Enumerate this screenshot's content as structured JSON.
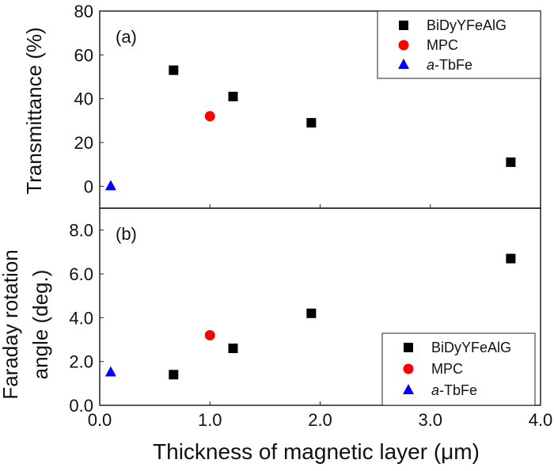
{
  "chart_data": [
    {
      "type": "scatter",
      "panel_label": "(a)",
      "ylabel": "Transmittance (%)",
      "ylim": [
        -10,
        80
      ],
      "yticks": [
        "80",
        "60",
        "40",
        "20",
        "0"
      ],
      "ytick_values": [
        80,
        60,
        40,
        20,
        0
      ],
      "xlim": [
        0,
        4
      ],
      "legend": "top-right",
      "series": [
        {
          "name": "BiDyYFeAlG",
          "marker": "square",
          "color": "#000000",
          "x": [
            0.67,
            1.21,
            1.92,
            3.73
          ],
          "y": [
            53,
            41,
            29,
            11
          ]
        },
        {
          "name": "MPC",
          "marker": "circle",
          "color": "#ff0000",
          "x": [
            1.0
          ],
          "y": [
            32
          ]
        },
        {
          "name": "a-TbFe",
          "marker": "triangle",
          "color": "#0000ff",
          "x": [
            0.1
          ],
          "y": [
            0
          ]
        }
      ]
    },
    {
      "type": "scatter",
      "panel_label": "(b)",
      "ylabel_lines": [
        "Faraday rotation",
        "angle (deg.)"
      ],
      "ylim": [
        0,
        9
      ],
      "yticks": [
        "8.0",
        "6.0",
        "4.0",
        "2.0",
        "0.0"
      ],
      "ytick_values": [
        8,
        6,
        4,
        2,
        0
      ],
      "xlabel": "Thickness of magnetic layer (μm)",
      "xlim": [
        0,
        4
      ],
      "xticks": [
        "0.0",
        "1.0",
        "2.0",
        "3.0",
        "4.0"
      ],
      "xtick_values": [
        0,
        1,
        2,
        3,
        4
      ],
      "legend": "bottom-right",
      "series": [
        {
          "name": "BiDyYFeAlG",
          "marker": "square",
          "color": "#000000",
          "x": [
            0.67,
            1.21,
            1.92,
            3.73
          ],
          "y": [
            1.4,
            2.6,
            4.2,
            6.7
          ]
        },
        {
          "name": "MPC",
          "marker": "circle",
          "color": "#ff0000",
          "x": [
            1.0
          ],
          "y": [
            3.2
          ]
        },
        {
          "name": "a-TbFe",
          "marker": "triangle",
          "color": "#0000ff",
          "x": [
            0.1
          ],
          "y": [
            1.5
          ]
        }
      ]
    }
  ]
}
